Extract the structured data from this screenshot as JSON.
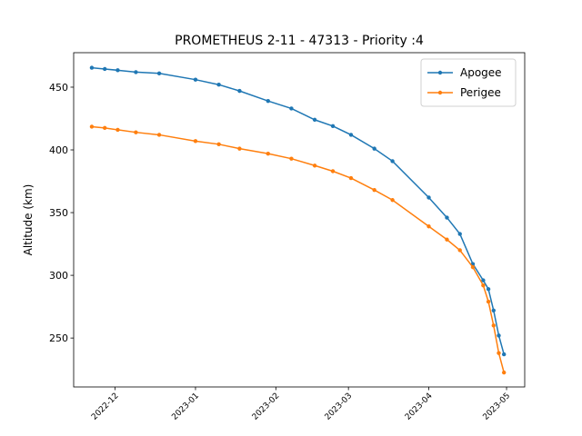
{
  "chart_data": {
    "type": "line",
    "title": "PROMETHEUS 2-11 - 47313 - Priority :4",
    "y_label": "Altitude (km)",
    "x": [
      19318,
      19323,
      19328,
      19335,
      19344,
      19358,
      19367,
      19375,
      19386,
      19395,
      19404,
      19411,
      19418,
      19427,
      19434,
      19448,
      19455,
      19460,
      19465,
      19469,
      19471,
      19473,
      19475,
      19477
    ],
    "series": [
      {
        "name": "Apogee",
        "color": "#1f77b4",
        "values": [
          465.5,
          464.5,
          463.5,
          462,
          461,
          456,
          452,
          447,
          439,
          433,
          424,
          419,
          412,
          401,
          391,
          362,
          346,
          333,
          309,
          296,
          289,
          272,
          252,
          237
        ]
      },
      {
        "name": "Perigee",
        "color": "#ff7f0e",
        "values": [
          418.5,
          417.5,
          416,
          414,
          412,
          407,
          404.5,
          401,
          397,
          393,
          387.5,
          383,
          377.5,
          368,
          360,
          339,
          328.5,
          320,
          306.5,
          292,
          279,
          260,
          238,
          222.5
        ]
      }
    ],
    "xlim": [
      19311,
      19485
    ],
    "xticks": [
      {
        "value": 19327,
        "label": "2022-12"
      },
      {
        "value": 19358,
        "label": "2023-01"
      },
      {
        "value": 19389,
        "label": "2023-02"
      },
      {
        "value": 19417,
        "label": "2023-03"
      },
      {
        "value": 19448,
        "label": "2023-04"
      },
      {
        "value": 19478,
        "label": "2023-05"
      }
    ],
    "ylim": [
      211,
      477.5
    ],
    "yticks": [
      250,
      300,
      350,
      400,
      450
    ],
    "legend": "upper right",
    "grid": false
  }
}
